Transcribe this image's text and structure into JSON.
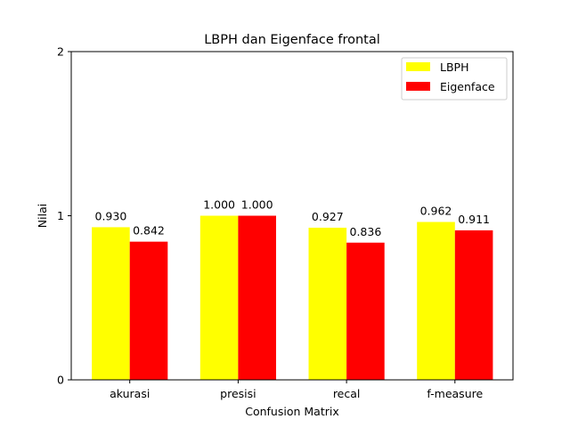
{
  "chart_data": {
    "type": "bar",
    "title": "LBPH dan Eigenface frontal",
    "xlabel": "Confusion Matrix",
    "ylabel": "Nilai",
    "categories": [
      "akurasi",
      "presisi",
      "recal",
      "f-measure"
    ],
    "series": [
      {
        "name": "LBPH",
        "color": "#ffff00",
        "values": [
          0.93,
          1.0,
          0.927,
          0.962
        ],
        "labels": [
          "0.930",
          "1.000",
          "0.927",
          "0.962"
        ]
      },
      {
        "name": "Eigenface",
        "color": "#ff0000",
        "values": [
          0.842,
          1.0,
          0.836,
          0.911
        ],
        "labels": [
          "0.842",
          "1.000",
          "0.836",
          "0.911"
        ]
      }
    ],
    "ylim": [
      0,
      2
    ],
    "yticks": [
      0,
      1,
      2
    ],
    "ytick_labels": [
      "0",
      "1",
      "2"
    ],
    "grid": false,
    "legend_position": "top-right"
  }
}
